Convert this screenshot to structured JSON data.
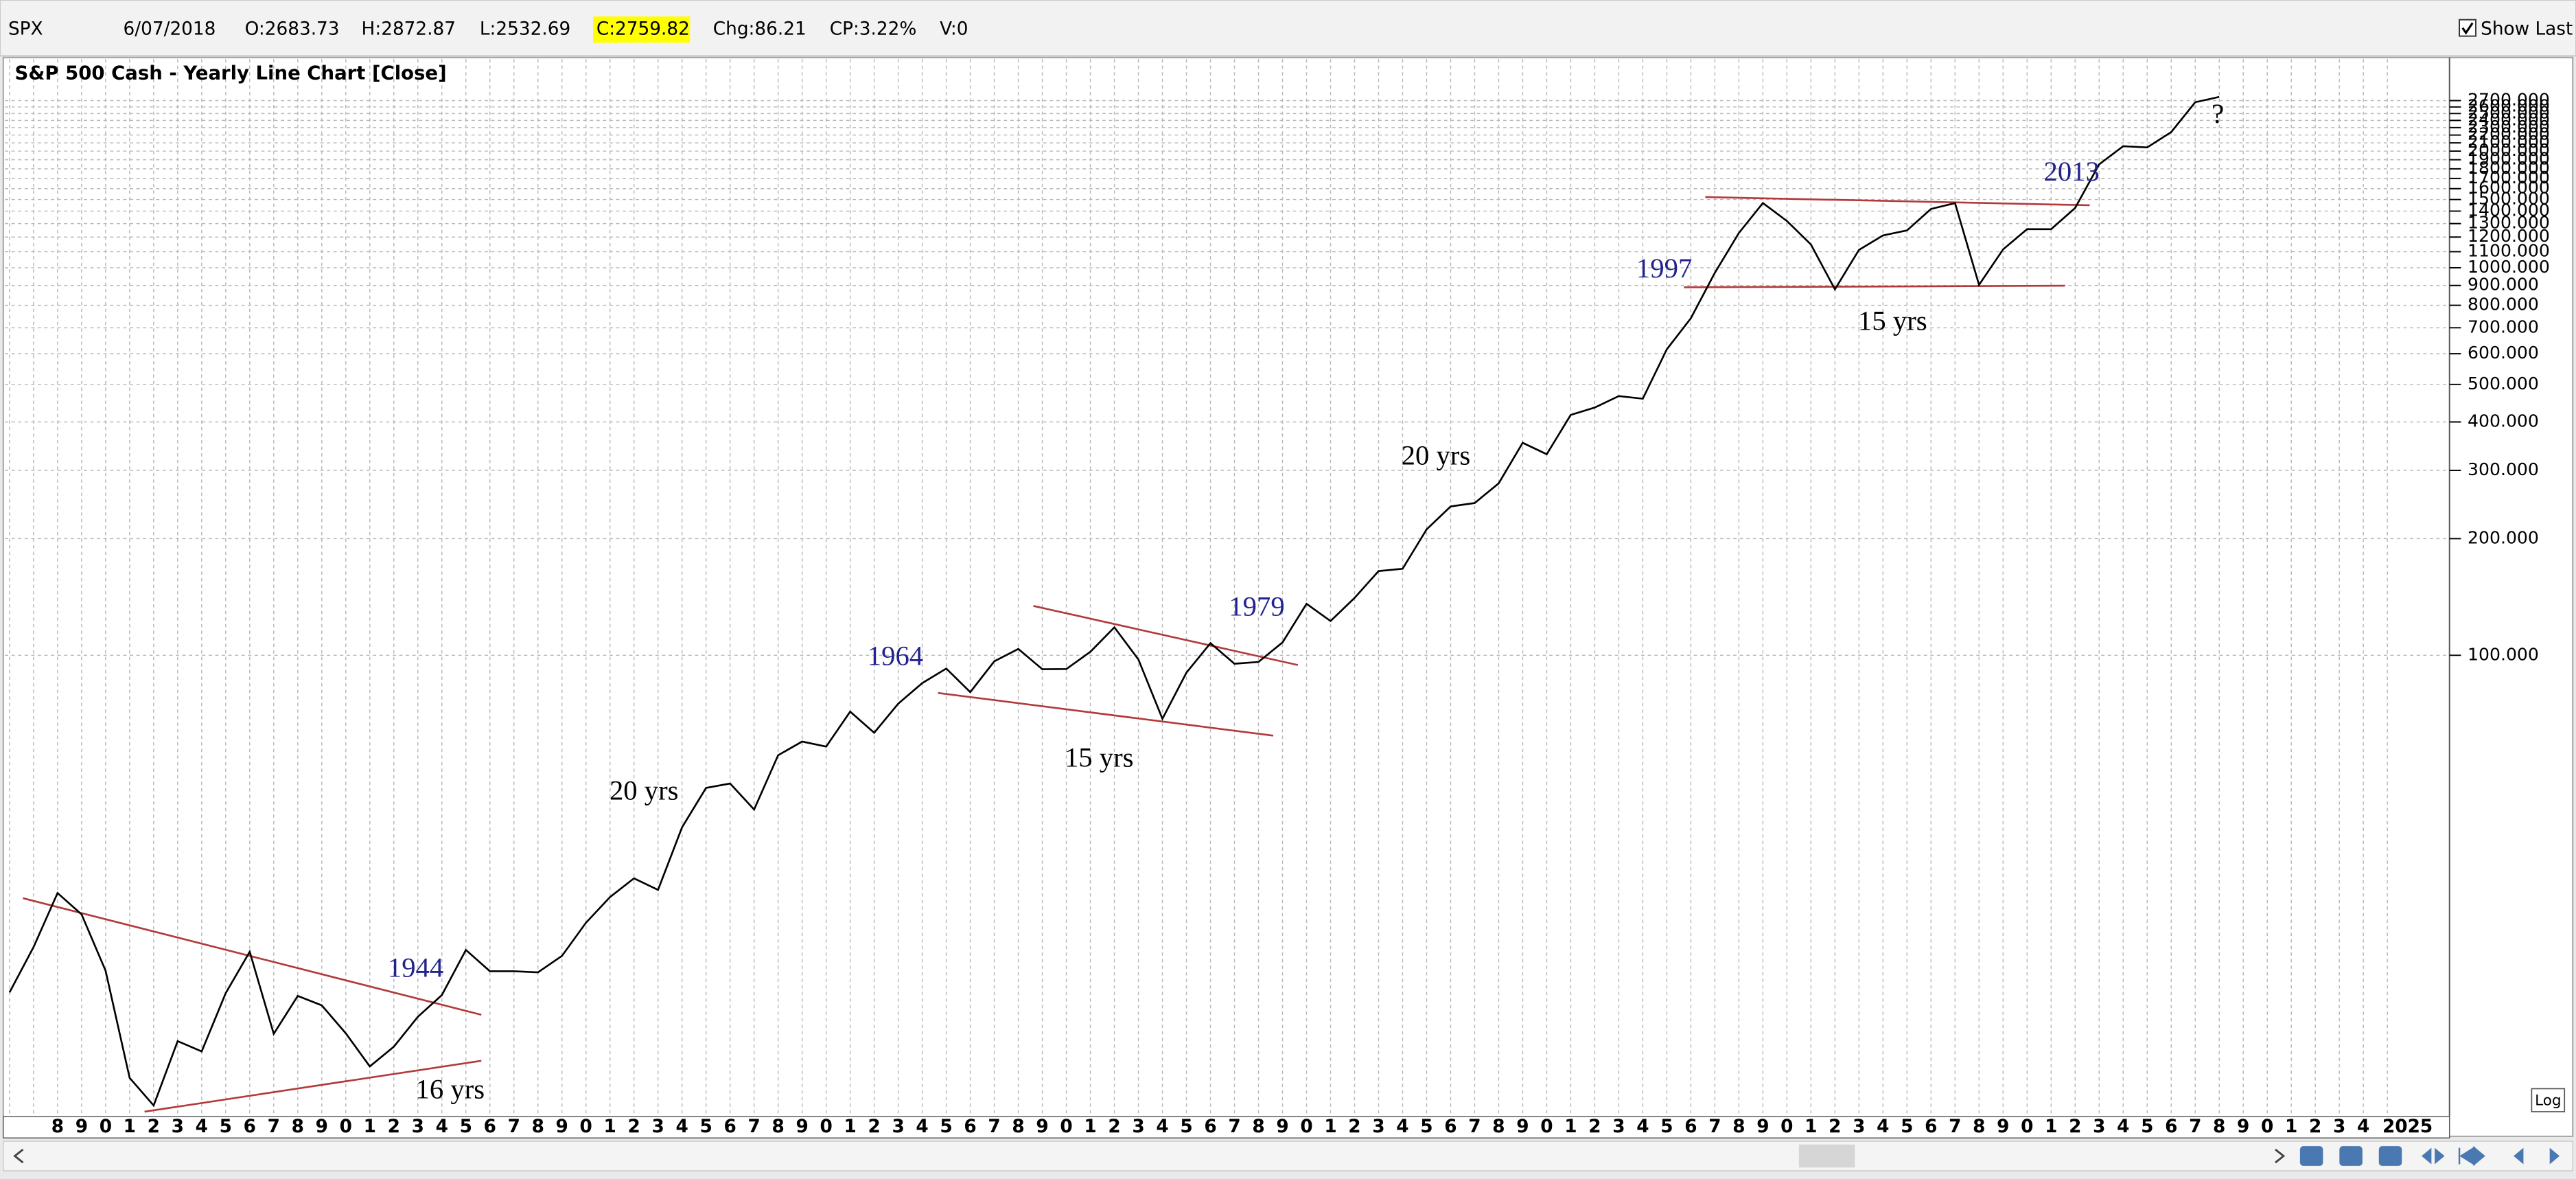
{
  "toolbar": {
    "symbol": "SPX",
    "date": "6/07/2018",
    "open": "O:2683.73",
    "high": "H:2872.87",
    "low": "L:2532.69",
    "close": "C:2759.82",
    "change": "Chg:86.21",
    "change_percent": "CP:3.22%",
    "volume": "V:0",
    "show_last": "Show Last"
  },
  "log_button": "Log",
  "chart_data": {
    "type": "line",
    "title": "S&P 500 Cash - Yearly Line Chart [Close]",
    "color": "#000000",
    "log_scale": true,
    "grid": true,
    "categories": [
      null,
      null,
      "8",
      "9",
      "0",
      "1",
      "2",
      "3",
      "4",
      "5",
      "6",
      "7",
      "8",
      "9",
      "0",
      "1",
      "2",
      "3",
      "4",
      "5",
      "6",
      "7",
      "8",
      "9",
      "0",
      "1",
      "2",
      "3",
      "4",
      "5",
      "6",
      "7",
      "8",
      "9",
      "0",
      "1",
      "2",
      "3",
      "4",
      "5",
      "6",
      "7",
      "8",
      "9",
      "0",
      "1",
      "2",
      "3",
      "4",
      "5",
      "6",
      "7",
      "8",
      "9",
      "0",
      "1",
      "2",
      "3",
      "4",
      "5",
      "6",
      "7",
      "8",
      "9",
      "0",
      "1",
      "2",
      "3",
      "4",
      "5",
      "6",
      "7",
      "8",
      "9",
      "0",
      "1",
      "2",
      "3",
      "4",
      "5",
      "6",
      "7",
      "8",
      "9",
      "0",
      "1",
      "2",
      "3",
      "4",
      "5",
      "6",
      "7",
      "8",
      "9",
      "0",
      "1",
      "2",
      "3",
      "4",
      "2025"
    ],
    "values": [
      13.49,
      17.66,
      24.35,
      21.45,
      15.34,
      8.12,
      6.89,
      10.1,
      9.5,
      13.43,
      17.18,
      10.55,
      13.21,
      12.49,
      10.58,
      8.69,
      9.77,
      11.67,
      13.28,
      17.36,
      15.3,
      15.3,
      15.2,
      16.76,
      20.41,
      23.77,
      26.57,
      24.81,
      35.98,
      45.48,
      46.67,
      39.99,
      55.21,
      59.89,
      58.11,
      71.55,
      63.1,
      75.02,
      84.75,
      92.43,
      80.33,
      96.47,
      103.86,
      92.06,
      92.15,
      102.09,
      118.05,
      97.55,
      68.56,
      90.19,
      107.46,
      95.1,
      96.11,
      107.94,
      135.76,
      122.55,
      140.64,
      164.93,
      167.24,
      211.28,
      242.17,
      247.08,
      277.72,
      353.4,
      330.22,
      417.09,
      435.71,
      466.45,
      459.27,
      615.93,
      740.74,
      970.43,
      1229.23,
      1469.25,
      1320.28,
      1148.08,
      879.82,
      1111.92,
      1211.92,
      1248.29,
      1418.3,
      1468.36,
      903.25,
      1115.1,
      1257.64,
      1257.6,
      1426.19,
      1848.36,
      2058.9,
      2043.94,
      2238.83,
      2673.61,
      2759.82,
      null,
      null,
      null,
      null,
      null,
      null,
      null
    ],
    "ylim": [
      6.45,
      2870
    ],
    "yticks": [
      {
        "value": 100,
        "label": "100.000"
      },
      {
        "value": 200,
        "label": "200.000"
      },
      {
        "value": 300,
        "label": "300.000"
      },
      {
        "value": 400,
        "label": "400.000"
      },
      {
        "value": 500,
        "label": "500.000"
      },
      {
        "value": 600,
        "label": "600.000"
      },
      {
        "value": 700,
        "label": "700.000"
      },
      {
        "value": 800,
        "label": "800.000"
      },
      {
        "value": 900,
        "label": "900.000"
      },
      {
        "value": 1000,
        "label": "1000.000"
      },
      {
        "value": 1100,
        "label": "1100.000"
      },
      {
        "value": 1200,
        "label": "1200.000"
      },
      {
        "value": 1300,
        "label": "1300.000"
      },
      {
        "value": 1400,
        "label": "1400.000"
      },
      {
        "value": 1500,
        "label": "1500.000"
      },
      {
        "value": 1600,
        "label": "1600.000"
      },
      {
        "value": 1700,
        "label": "1700.000"
      },
      {
        "value": 1800,
        "label": "1800.000"
      },
      {
        "value": 1900,
        "label": "1900.000"
      },
      {
        "value": 2000,
        "label": "2000.000"
      },
      {
        "value": 2100,
        "label": "2100.000"
      },
      {
        "value": 2200,
        "label": "2200.000"
      },
      {
        "value": 2300,
        "label": "2300.000"
      },
      {
        "value": 2400,
        "label": "2400.000"
      },
      {
        "value": 2500,
        "label": "2500.000"
      },
      {
        "value": 2600,
        "label": "2600.000"
      },
      {
        "value": 2700,
        "label": "2700.000"
      }
    ],
    "annotations": [
      {
        "text": "1944",
        "color": "#23238e"
      },
      {
        "text": "1964",
        "color": "#23238e"
      },
      {
        "text": "1979",
        "color": "#23238e"
      },
      {
        "text": "1997",
        "color": "#23238e"
      },
      {
        "text": "2013",
        "color": "#23238e"
      },
      {
        "text": "16 yrs",
        "color": "#000000"
      },
      {
        "text": "20 yrs",
        "color": "#000000"
      },
      {
        "text": "15 yrs",
        "color": "#000000"
      },
      {
        "text": "20 yrs",
        "color": "#000000"
      },
      {
        "text": "15 yrs",
        "color": "#000000"
      },
      {
        "text": "?",
        "color": "#000000"
      }
    ]
  }
}
